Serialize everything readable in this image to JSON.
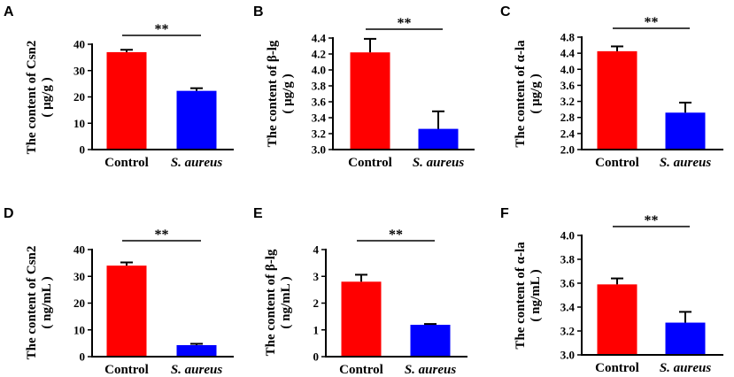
{
  "chart_data": [
    {
      "panel": "A",
      "type": "bar",
      "ylabel_line1": "The content of Csn2",
      "ylabel_line2": "( μg/g )",
      "categories": [
        "Control",
        "S. aureus"
      ],
      "values": [
        37.0,
        22.3
      ],
      "errors": [
        0.9,
        1.0
      ],
      "colors": [
        "#ff0000",
        "#0000ff"
      ],
      "ylim": [
        0,
        40
      ],
      "yticks": [
        0,
        10,
        20,
        30,
        40
      ],
      "ytick_labels": [
        "0",
        "10",
        "20",
        "30",
        "40"
      ],
      "significance": "**"
    },
    {
      "panel": "B",
      "type": "bar",
      "ylabel_line1": "The content of β-lg",
      "ylabel_line2": "( μg/g )",
      "categories": [
        "Control",
        "S. aureus"
      ],
      "values": [
        4.22,
        3.26
      ],
      "errors": [
        0.17,
        0.22
      ],
      "colors": [
        "#ff0000",
        "#0000ff"
      ],
      "ylim": [
        3.0,
        4.4
      ],
      "yticks": [
        3.0,
        3.2,
        3.4,
        3.6,
        3.8,
        4.0,
        4.2,
        4.4
      ],
      "ytick_labels": [
        "3.0",
        "3.2",
        "3.4",
        "3.6",
        "3.8",
        "4.0",
        "4.2",
        "4.4"
      ],
      "significance": "**"
    },
    {
      "panel": "C",
      "type": "bar",
      "ylabel_line1": "The content of α-la",
      "ylabel_line2": "( μg/g )",
      "categories": [
        "Control",
        "S. aureus"
      ],
      "values": [
        4.45,
        2.92
      ],
      "errors": [
        0.12,
        0.25
      ],
      "colors": [
        "#ff0000",
        "#0000ff"
      ],
      "ylim": [
        2.0,
        4.8
      ],
      "yticks": [
        2.0,
        2.4,
        2.8,
        3.2,
        3.6,
        4.0,
        4.4,
        4.8
      ],
      "ytick_labels": [
        "2.0",
        "2.4",
        "2.8",
        "3.2",
        "3.6",
        "4.0",
        "4.4",
        "4.8"
      ],
      "significance": "**"
    },
    {
      "panel": "D",
      "type": "bar",
      "ylabel_line1": "The content of Csn2",
      "ylabel_line2": "( ng/mL )",
      "categories": [
        "Control",
        "S. aureus"
      ],
      "values": [
        34.0,
        4.3
      ],
      "errors": [
        1.2,
        0.5
      ],
      "colors": [
        "#ff0000",
        "#0000ff"
      ],
      "ylim": [
        0,
        40
      ],
      "yticks": [
        0,
        10,
        20,
        30,
        40
      ],
      "ytick_labels": [
        "0",
        "10",
        "20",
        "30",
        "40"
      ],
      "significance": "**"
    },
    {
      "panel": "E",
      "type": "bar",
      "ylabel_line1": "The content of β-lg",
      "ylabel_line2": "( ng/mL )",
      "categories": [
        "Control",
        "S. aureus"
      ],
      "values": [
        2.8,
        1.19
      ],
      "errors": [
        0.26,
        0.03
      ],
      "colors": [
        "#ff0000",
        "#0000ff"
      ],
      "ylim": [
        0,
        4
      ],
      "yticks": [
        0,
        1,
        2,
        3,
        4
      ],
      "ytick_labels": [
        "0",
        "1",
        "2",
        "3",
        "4"
      ],
      "significance": "**"
    },
    {
      "panel": "F",
      "type": "bar",
      "ylabel_line1": "The content of α-la",
      "ylabel_line2": "( ng/mL )",
      "categories": [
        "Control",
        "S. aureus"
      ],
      "values": [
        3.59,
        3.27
      ],
      "errors": [
        0.05,
        0.09
      ],
      "colors": [
        "#ff0000",
        "#0000ff"
      ],
      "ylim": [
        3.0,
        4.0
      ],
      "yticks": [
        3.0,
        3.2,
        3.4,
        3.6,
        3.8,
        4.0
      ],
      "ytick_labels": [
        "3.0",
        "3.2",
        "3.4",
        "3.6",
        "3.8",
        "4.0"
      ],
      "significance": "**"
    }
  ]
}
